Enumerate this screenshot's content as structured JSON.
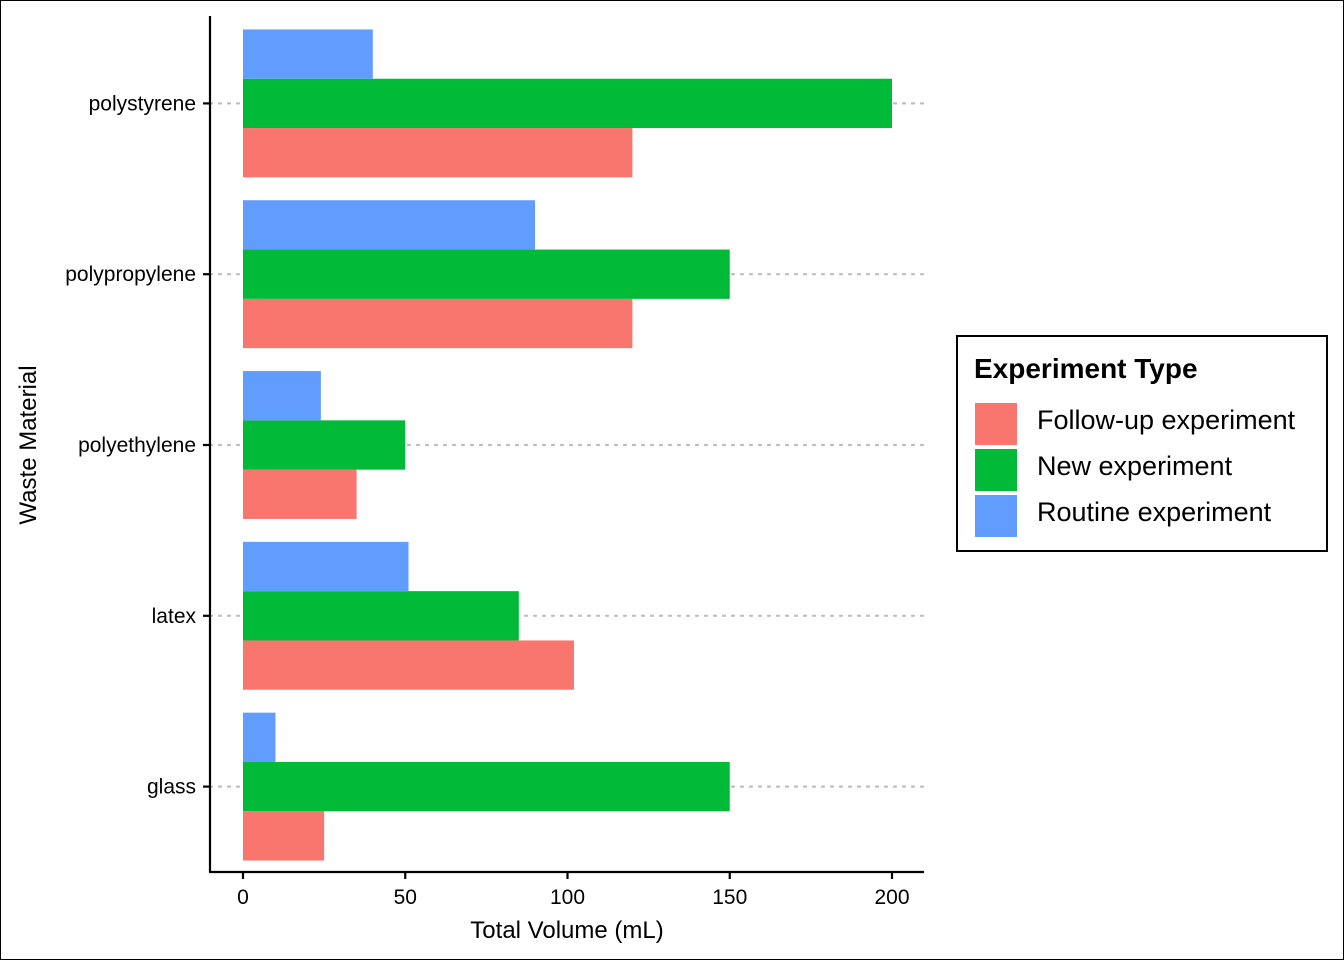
{
  "chart_data": {
    "type": "bar",
    "orientation": "horizontal",
    "categories": [
      "glass",
      "latex",
      "polyethylene",
      "polypropylene",
      "polystyrene"
    ],
    "series": [
      {
        "name": "Follow-up experiment",
        "color": "#F8766D",
        "values": [
          25,
          102,
          35,
          120,
          120
        ]
      },
      {
        "name": "New experiment",
        "color": "#00BA38",
        "values": [
          150,
          85,
          50,
          150,
          200
        ]
      },
      {
        "name": "Routine experiment",
        "color": "#619CFF",
        "values": [
          10,
          51,
          24,
          90,
          40
        ]
      }
    ],
    "xlabel": "Total Volume (mL)",
    "ylabel": "Waste Material",
    "xticks": [
      "0",
      "50",
      "100",
      "150",
      "200"
    ],
    "xlim": [
      -10,
      210
    ],
    "legend_title": "Experiment Type",
    "legend_position": "right",
    "gridlines": "dotted horizontal"
  }
}
